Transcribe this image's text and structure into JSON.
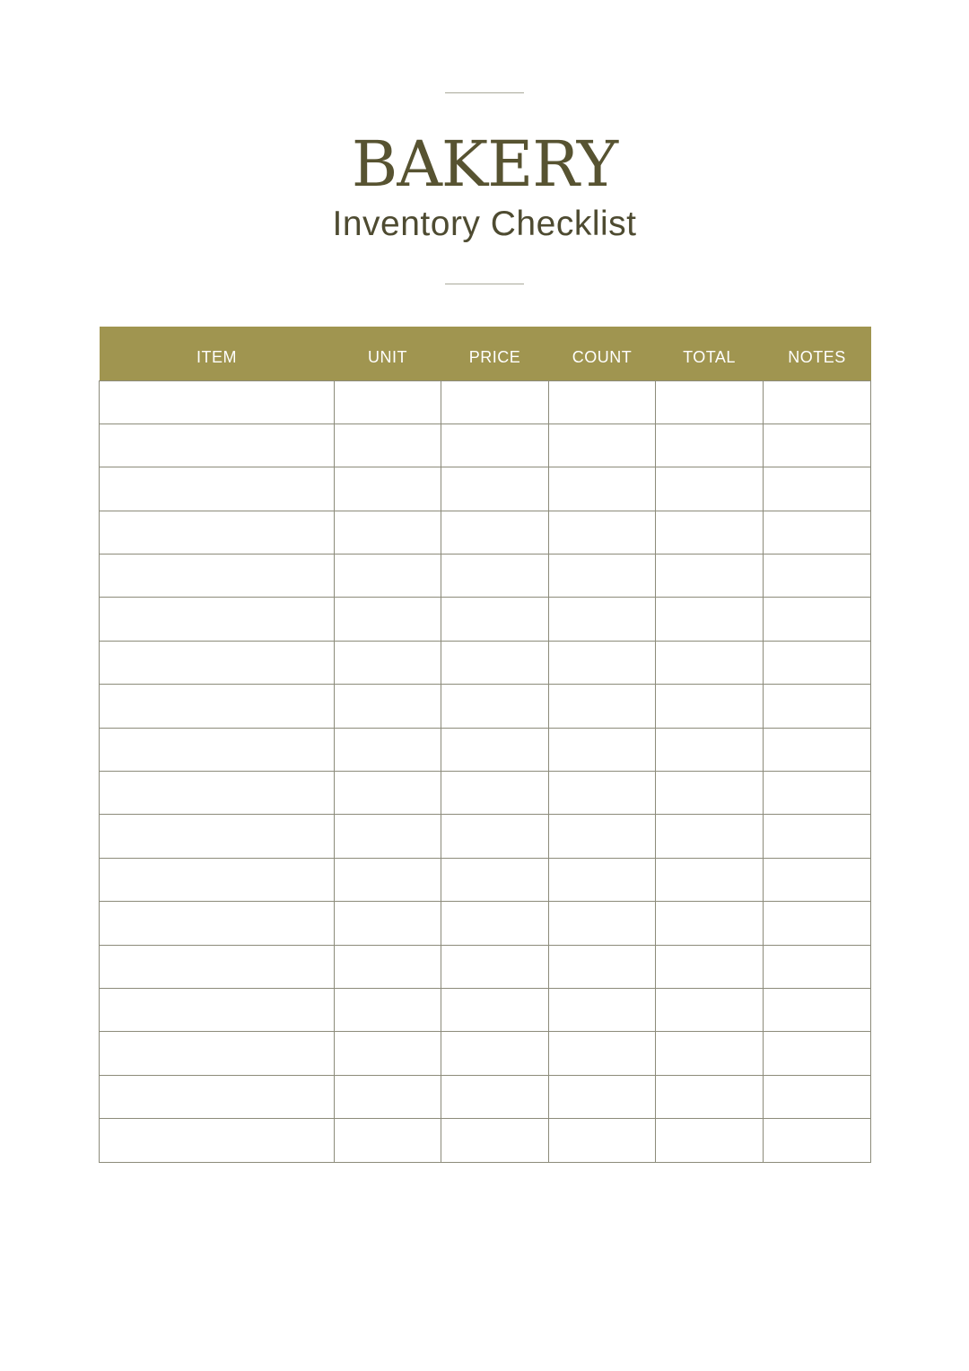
{
  "header": {
    "title": "BAKERY",
    "subtitle": "Inventory Checklist"
  },
  "table": {
    "columns": [
      "ITEM",
      "UNIT",
      "PRICE",
      "COUNT",
      "TOTAL",
      "NOTES"
    ],
    "header_color": "#a09550",
    "rows": []
  },
  "colors": {
    "title": "#575331",
    "grid": "#8c8b7a"
  }
}
